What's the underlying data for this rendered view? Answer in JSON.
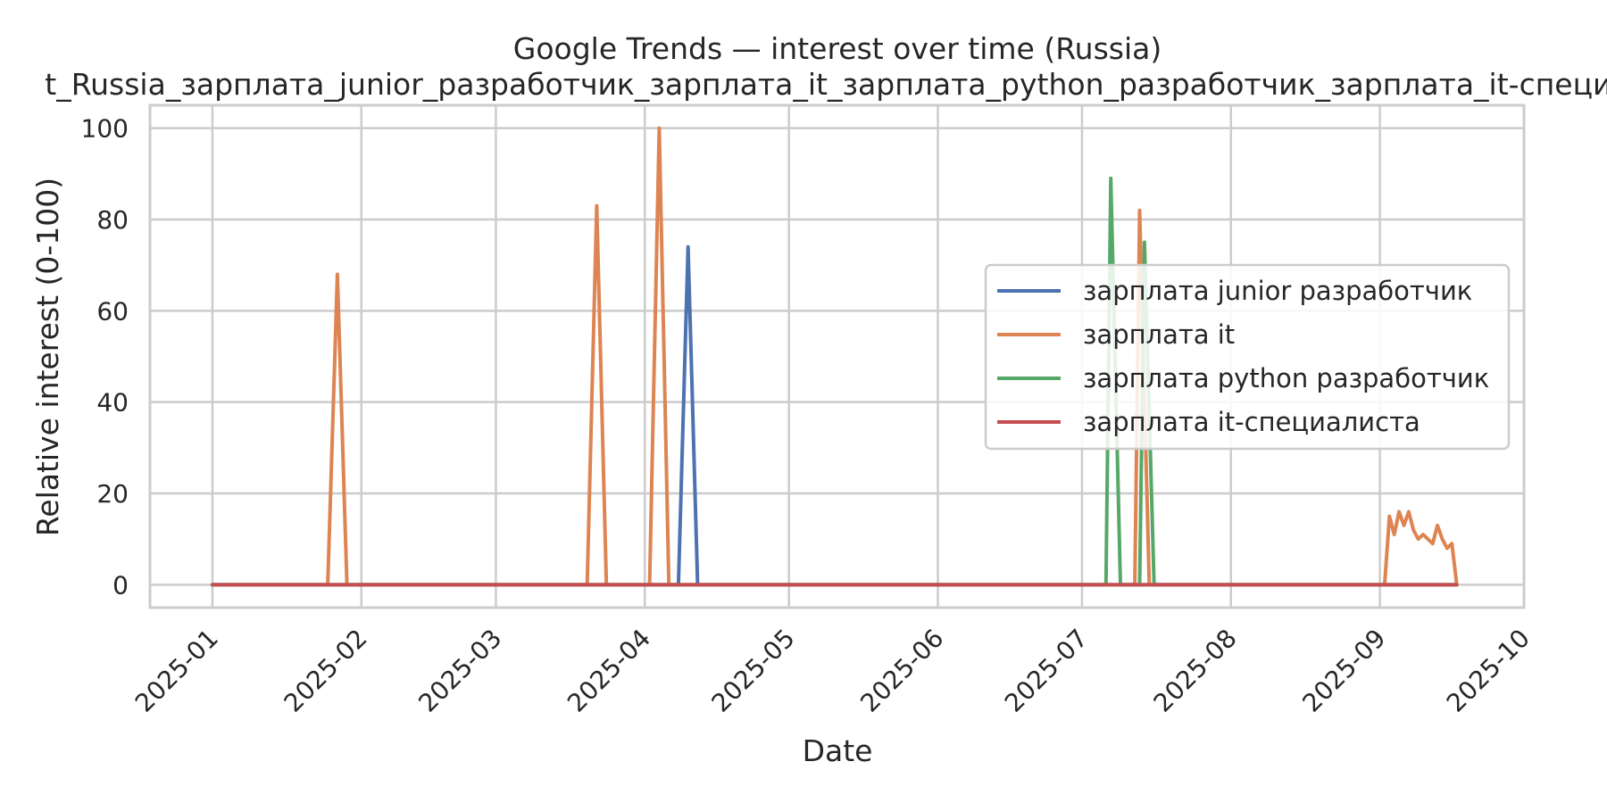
{
  "chart_data": {
    "type": "line",
    "title": "Google Trends — interest over time (Russia)",
    "subtitle": "t_Russia_зарплата_junior_разработчик_зарплата_it_зарплата_python_разработчик_зарплата_it-специа",
    "xlabel": "Date",
    "ylabel": "Relative interest (0-100)",
    "xlim": [
      "2024-12-19",
      "2025-10-01"
    ],
    "ylim": [
      -5,
      105
    ],
    "x_ticks": [
      "2025-01",
      "2025-02",
      "2025-03",
      "2025-04",
      "2025-05",
      "2025-06",
      "2025-07",
      "2025-08",
      "2025-09",
      "2025-10"
    ],
    "y_ticks": [
      0,
      20,
      40,
      60,
      80,
      100
    ],
    "grid": true,
    "legend_position": "center-right",
    "series": [
      {
        "name": "зарплата junior разработчик",
        "color": "#4c72b0",
        "points": [
          [
            "2025-01-01",
            0
          ],
          [
            "2025-04-08",
            0
          ],
          [
            "2025-04-10",
            74
          ],
          [
            "2025-04-12",
            0
          ],
          [
            "2025-09-17",
            0
          ]
        ]
      },
      {
        "name": "зарплата it",
        "color": "#dd8452",
        "points": [
          [
            "2025-01-01",
            0
          ],
          [
            "2025-01-25",
            0
          ],
          [
            "2025-01-27",
            68
          ],
          [
            "2025-01-29",
            0
          ],
          [
            "2025-03-20",
            0
          ],
          [
            "2025-03-22",
            83
          ],
          [
            "2025-03-24",
            0
          ],
          [
            "2025-04-02",
            0
          ],
          [
            "2025-04-04",
            100
          ],
          [
            "2025-04-06",
            0
          ],
          [
            "2025-07-12",
            0
          ],
          [
            "2025-07-13",
            82
          ],
          [
            "2025-07-15",
            0
          ],
          [
            "2025-09-02",
            0
          ],
          [
            "2025-09-03",
            15
          ],
          [
            "2025-09-04",
            11
          ],
          [
            "2025-09-05",
            16
          ],
          [
            "2025-09-06",
            13
          ],
          [
            "2025-09-07",
            16
          ],
          [
            "2025-09-08",
            12
          ],
          [
            "2025-09-09",
            10
          ],
          [
            "2025-09-10",
            11
          ],
          [
            "2025-09-11",
            10
          ],
          [
            "2025-09-12",
            9
          ],
          [
            "2025-09-13",
            13
          ],
          [
            "2025-09-14",
            10
          ],
          [
            "2025-09-15",
            8
          ],
          [
            "2025-09-16",
            9
          ],
          [
            "2025-09-17",
            0
          ]
        ]
      },
      {
        "name": "зарплата python разработчик",
        "color": "#55a868",
        "points": [
          [
            "2025-01-01",
            0
          ],
          [
            "2025-07-06",
            0
          ],
          [
            "2025-07-07",
            89
          ],
          [
            "2025-07-09",
            0
          ],
          [
            "2025-07-13",
            0
          ],
          [
            "2025-07-14",
            75
          ],
          [
            "2025-07-16",
            0
          ],
          [
            "2025-09-17",
            0
          ]
        ]
      },
      {
        "name": "зарплата it-специалиста",
        "color": "#c44e52",
        "points": [
          [
            "2025-01-01",
            0
          ],
          [
            "2025-09-17",
            0
          ]
        ]
      }
    ]
  }
}
